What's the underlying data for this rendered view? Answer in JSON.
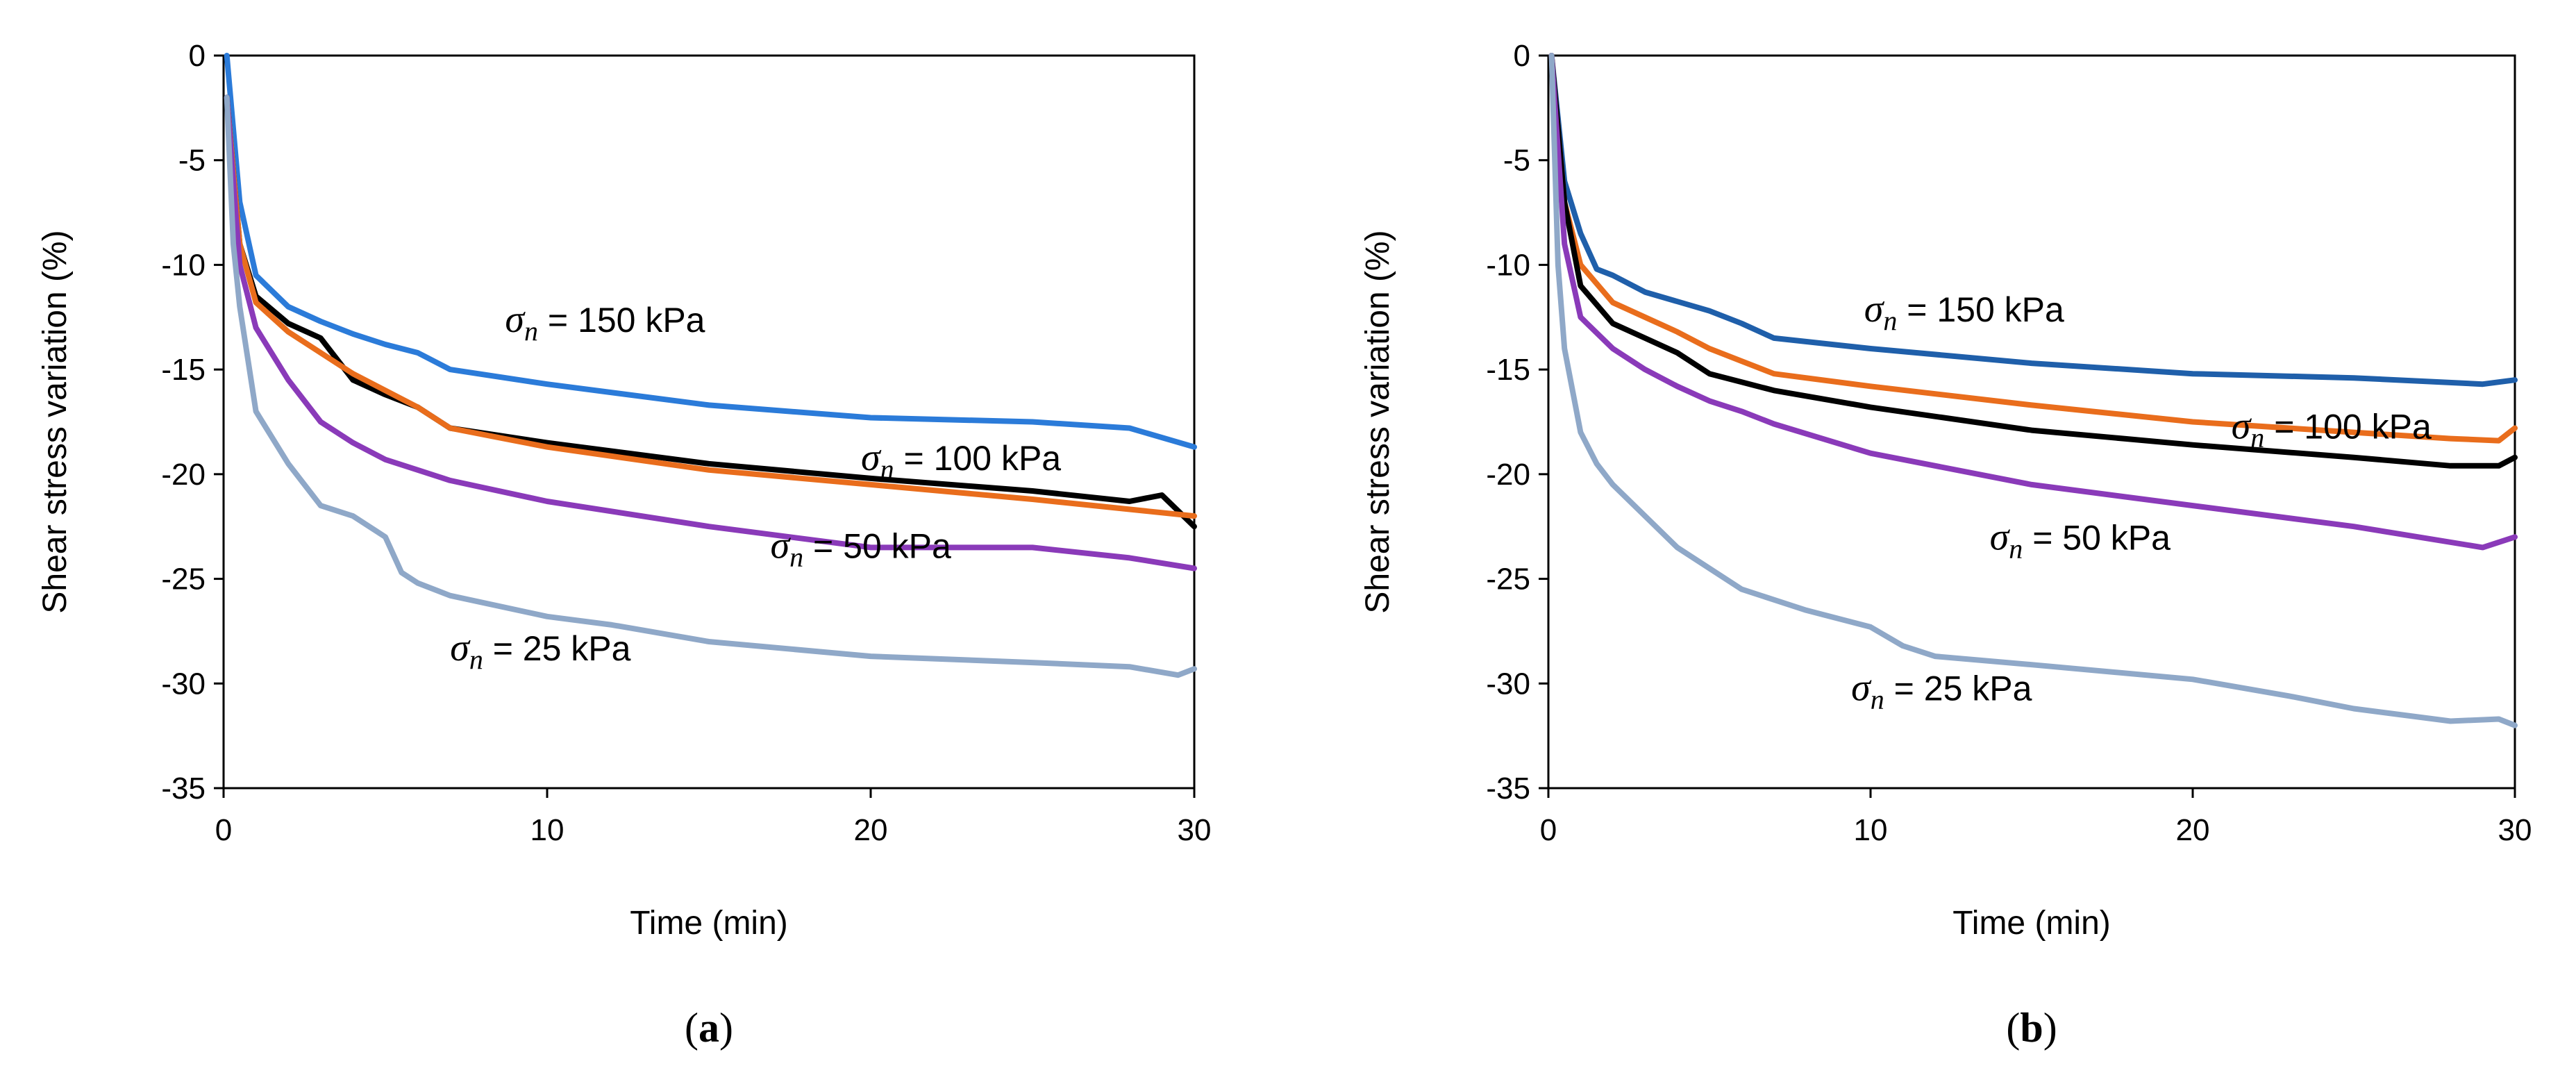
{
  "chart_data": [
    {
      "type": "line",
      "panel_label": "a",
      "xlabel": "Time (min)",
      "ylabel": "Shear stress variation  (%)",
      "xlim": [
        0,
        30
      ],
      "ylim": [
        -35,
        0
      ],
      "xticks": [
        0,
        10,
        20,
        30
      ],
      "yticks": [
        0,
        -5,
        -10,
        -15,
        -20,
        -25,
        -30,
        -35
      ],
      "grid": false,
      "series": [
        {
          "name": "σn = 150 kPa",
          "symbol": "σ",
          "subscript": "n",
          "rest": " = 150 kPa",
          "color": "#2B7BD9",
          "x": [
            0.1,
            0.5,
            1,
            2,
            3,
            4,
            5,
            6,
            7,
            10,
            15,
            20,
            25,
            28,
            30
          ],
          "y": [
            0,
            -7,
            -10.5,
            -12,
            -12.7,
            -13.3,
            -13.8,
            -14.2,
            -15,
            -15.7,
            -16.7,
            -17.3,
            -17.5,
            -17.8,
            -18.7
          ]
        },
        {
          "name": "σn = 100 kPa",
          "symbol": "σ",
          "subscript": "n",
          "rest": " = 100 kPa",
          "color": "#000000",
          "x": [
            0.1,
            0.5,
            1,
            2,
            3,
            4,
            5,
            6,
            7,
            10,
            15,
            20,
            25,
            28,
            29,
            30
          ],
          "y": [
            -2,
            -9,
            -11.5,
            -12.8,
            -13.5,
            -15.5,
            -16.2,
            -16.8,
            -17.8,
            -18.5,
            -19.5,
            -20.2,
            -20.8,
            -21.3,
            -21.0,
            -22.5
          ]
        },
        {
          "name": "σn = 100 kPa (orange)",
          "symbol": "σ",
          "subscript": "n",
          "rest": " = 100 kPa",
          "color": "#E96D1C",
          "x": [
            0.1,
            0.5,
            1,
            2,
            3,
            4,
            5,
            6,
            7,
            10,
            15,
            20,
            25,
            30
          ],
          "y": [
            -2,
            -9,
            -11.8,
            -13.2,
            -14.2,
            -15.2,
            -16.0,
            -16.8,
            -17.8,
            -18.7,
            -19.8,
            -20.5,
            -21.2,
            -22.0
          ]
        },
        {
          "name": "σn = 50 kPa",
          "symbol": "σ",
          "subscript": "n",
          "rest": " = 50 kPa",
          "color": "#8A3AB9",
          "x": [
            0.1,
            0.5,
            1,
            2,
            3,
            4,
            5,
            6,
            7,
            10,
            15,
            20,
            25,
            28,
            30
          ],
          "y": [
            -2,
            -10,
            -13,
            -15.5,
            -17.5,
            -18.5,
            -19.3,
            -19.8,
            -20.3,
            -21.3,
            -22.5,
            -23.5,
            -23.5,
            -24.0,
            -24.5
          ]
        },
        {
          "name": "σn = 25 kPa",
          "symbol": "σ",
          "subscript": "n",
          "rest": " = 25 kPa",
          "color": "#8FA8C8",
          "x": [
            0.1,
            0.3,
            0.5,
            1,
            2,
            3,
            4,
            5,
            5.5,
            6,
            7,
            10,
            12,
            15,
            20,
            25,
            28,
            29.5,
            30
          ],
          "y": [
            -2,
            -9,
            -12,
            -17,
            -19.5,
            -21.5,
            -22,
            -23,
            -24.7,
            -25.2,
            -25.8,
            -26.8,
            -27.2,
            -28,
            -28.7,
            -29.0,
            -29.2,
            -29.6,
            -29.3
          ]
        }
      ],
      "annotations": [
        {
          "series": "150",
          "symbol": "σ",
          "subscript": "n",
          "rest": " = 150 kPa",
          "x": 8.7,
          "y": -13.2
        },
        {
          "series": "100",
          "symbol": "σ",
          "subscript": "n",
          "rest": " = 100 kPa",
          "x": 19.7,
          "y": -19.8
        },
        {
          "series": "50",
          "symbol": "σ",
          "subscript": "n",
          "rest": " = 50 kPa",
          "x": 16.9,
          "y": -24.0
        },
        {
          "series": "25",
          "symbol": "σ",
          "subscript": "n",
          "rest": " = 25 kPa",
          "x": 7.0,
          "y": -28.9
        }
      ]
    },
    {
      "type": "line",
      "panel_label": "b",
      "xlabel": "Time (min)",
      "ylabel": "Shear stress variation  (%)",
      "xlim": [
        0,
        30
      ],
      "ylim": [
        -35,
        0
      ],
      "xticks": [
        0,
        10,
        20,
        30
      ],
      "yticks": [
        0,
        -5,
        -10,
        -15,
        -20,
        -25,
        -30,
        -35
      ],
      "grid": false,
      "series": [
        {
          "name": "σn = 150 kPa",
          "symbol": "σ",
          "subscript": "n",
          "rest": " = 150 kPa",
          "color": "#1F5FAA",
          "x": [
            0.1,
            0.5,
            1,
            1.5,
            2,
            3,
            5,
            6,
            7,
            10,
            15,
            20,
            25,
            29,
            30
          ],
          "y": [
            0,
            -6,
            -8.5,
            -10.2,
            -10.5,
            -11.3,
            -12.2,
            -12.8,
            -13.5,
            -14.0,
            -14.7,
            -15.2,
            -15.4,
            -15.7,
            -15.5
          ]
        },
        {
          "name": "σn = 100 kPa",
          "symbol": "σ",
          "subscript": "n",
          "rest": " = 100 kPa",
          "color": "#E96D1C",
          "x": [
            0.1,
            0.5,
            1,
            2,
            3,
            4,
            5,
            6,
            7,
            10,
            15,
            20,
            25,
            28,
            29.5,
            30
          ],
          "y": [
            0,
            -7,
            -10,
            -11.8,
            -12.5,
            -13.2,
            -14.0,
            -14.6,
            -15.2,
            -15.8,
            -16.7,
            -17.5,
            -18.0,
            -18.3,
            -18.4,
            -17.8
          ]
        },
        {
          "name": "σn = 100 kPa (black)",
          "symbol": "σ",
          "subscript": "n",
          "rest": " = 100 kPa",
          "color": "#000000",
          "x": [
            0.1,
            0.5,
            1,
            2,
            3,
            4,
            5,
            6,
            7,
            10,
            15,
            20,
            25,
            28,
            29.5,
            30
          ],
          "y": [
            0,
            -7,
            -11,
            -12.8,
            -13.5,
            -14.2,
            -15.2,
            -15.6,
            -16.0,
            -16.8,
            -17.9,
            -18.6,
            -19.2,
            -19.6,
            -19.6,
            -19.2
          ]
        },
        {
          "name": "σn = 50 kPa",
          "symbol": "σ",
          "subscript": "n",
          "rest": " = 50 kPa",
          "color": "#8A3AB9",
          "x": [
            0.1,
            0.5,
            1,
            2,
            3,
            4,
            5,
            6,
            7,
            10,
            15,
            20,
            25,
            29,
            30
          ],
          "y": [
            0,
            -9,
            -12.5,
            -14,
            -15,
            -15.8,
            -16.5,
            -17,
            -17.6,
            -19.0,
            -20.5,
            -21.5,
            -22.5,
            -23.5,
            -23.0
          ]
        },
        {
          "name": "σn = 25 kPa",
          "symbol": "σ",
          "subscript": "n",
          "rest": " = 25 kPa",
          "color": "#8FA8C8",
          "x": [
            0.1,
            0.3,
            0.5,
            1,
            1.5,
            2,
            3,
            4,
            5,
            6,
            7,
            8,
            10,
            11,
            12,
            15,
            20,
            23,
            25,
            28,
            29.5,
            30
          ],
          "y": [
            0,
            -10,
            -14,
            -18,
            -19.5,
            -20.5,
            -22,
            -23.5,
            -24.5,
            -25.5,
            -26,
            -26.5,
            -27.3,
            -28.2,
            -28.7,
            -29.1,
            -29.8,
            -30.6,
            -31.2,
            -31.8,
            -31.7,
            -32.0
          ]
        }
      ],
      "annotations": [
        {
          "series": "150",
          "symbol": "σ",
          "subscript": "n",
          "rest": " = 150 kPa",
          "x": 9.8,
          "y": -12.7
        },
        {
          "series": "100",
          "symbol": "σ",
          "subscript": "n",
          "rest": " = 100 kPa",
          "x": 21.2,
          "y": -18.3
        },
        {
          "series": "50",
          "symbol": "σ",
          "subscript": "n",
          "rest": " = 50 kPa",
          "x": 13.7,
          "y": -23.6
        },
        {
          "series": "25",
          "symbol": "σ",
          "subscript": "n",
          "rest": " = 25 kPa",
          "x": 9.4,
          "y": -30.8
        }
      ]
    }
  ]
}
